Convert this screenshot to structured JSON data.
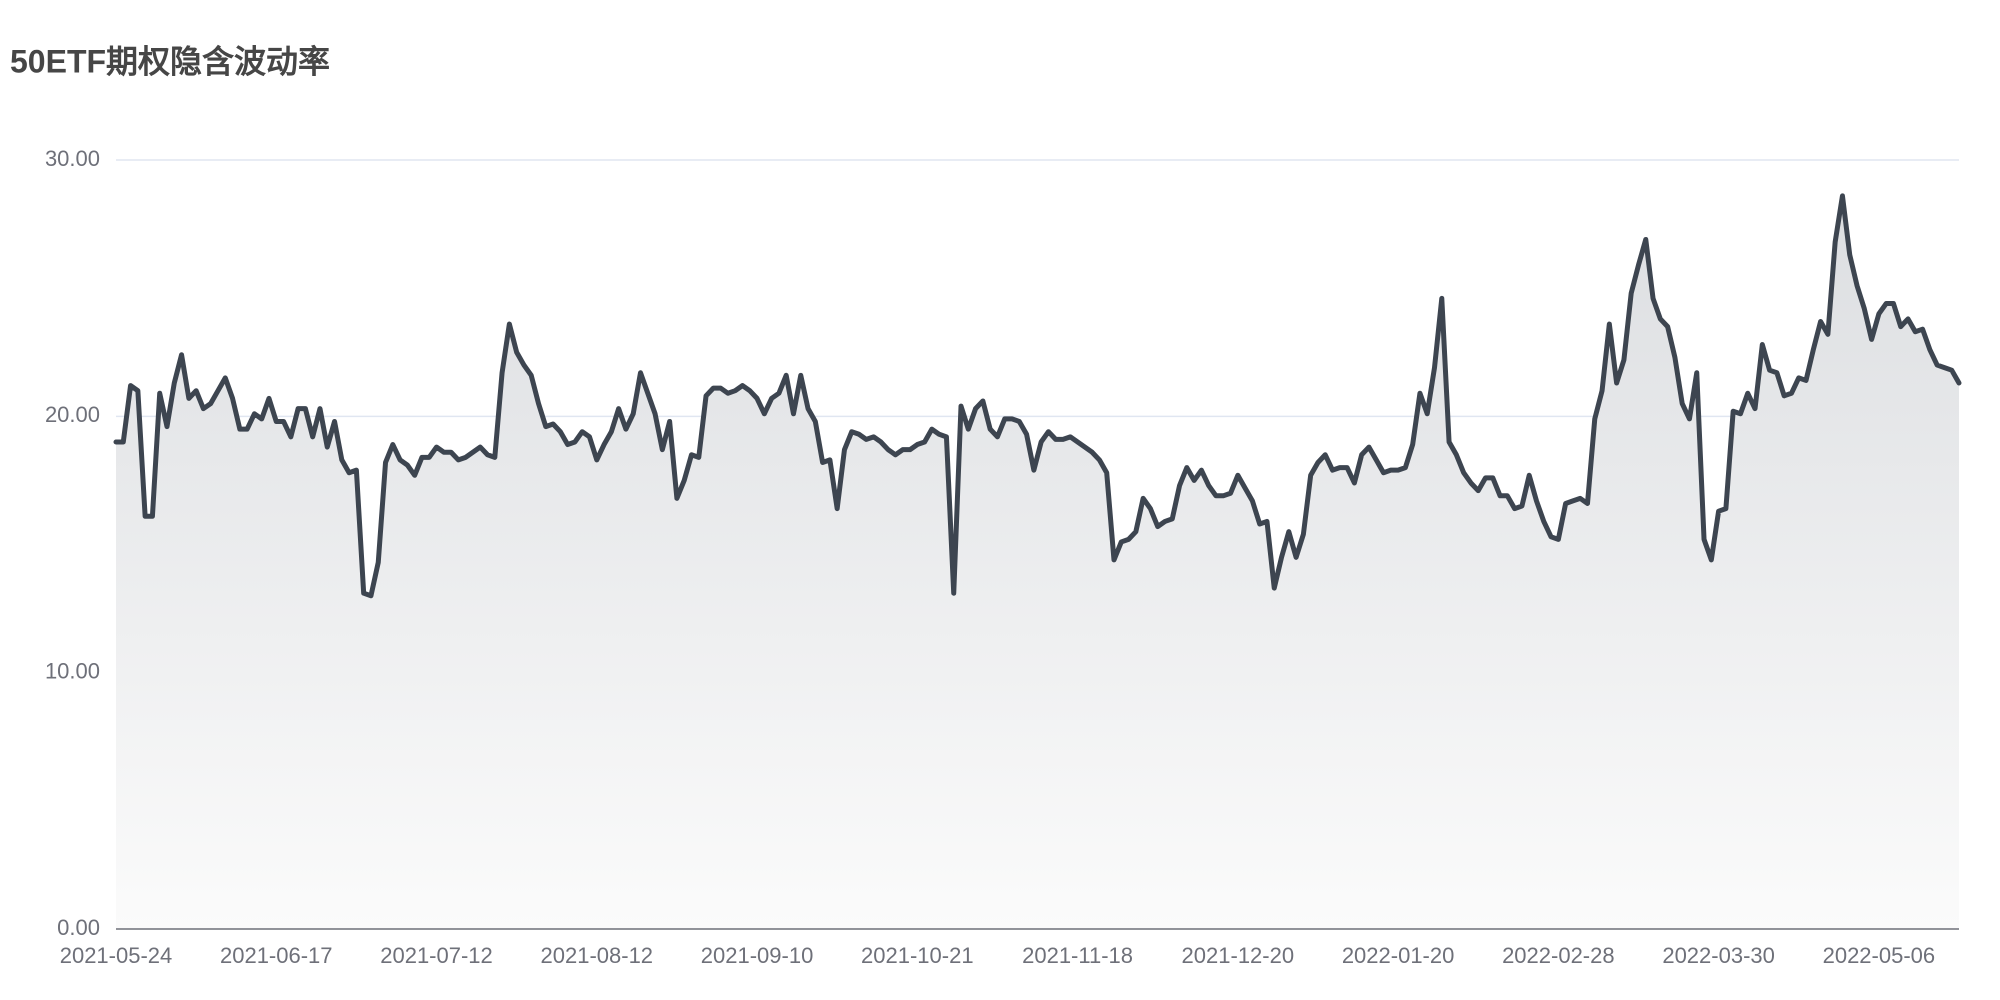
{
  "chart_data": {
    "type": "area-line",
    "title": "50ETF期权隐含波动率",
    "color": "#3d4550",
    "ylim": [
      0,
      30
    ],
    "yticks": [
      {
        "value": 0,
        "label": "0.00"
      },
      {
        "value": 10,
        "label": "10.00"
      },
      {
        "value": 20,
        "label": "20.00"
      },
      {
        "value": 30,
        "label": "30.00"
      }
    ],
    "grid": true,
    "categories": [
      "2021-05-24",
      null,
      null,
      null,
      null,
      null,
      null,
      null,
      null,
      null,
      null,
      null,
      null,
      null,
      null,
      null,
      null,
      null,
      null,
      null,
      null,
      null,
      "2021-06-17",
      null,
      null,
      null,
      null,
      null,
      null,
      null,
      null,
      null,
      null,
      null,
      null,
      null,
      null,
      null,
      null,
      null,
      null,
      null,
      null,
      null,
      "2021-07-12",
      null,
      null,
      null,
      null,
      null,
      null,
      null,
      null,
      null,
      null,
      null,
      null,
      null,
      null,
      null,
      null,
      null,
      null,
      null,
      null,
      null,
      "2021-08-12",
      null,
      null,
      null,
      null,
      null,
      null,
      null,
      null,
      null,
      null,
      null,
      null,
      null,
      null,
      null,
      null,
      null,
      null,
      null,
      null,
      null,
      "2021-09-10",
      null,
      null,
      null,
      null,
      null,
      null,
      null,
      null,
      null,
      null,
      null,
      null,
      null,
      null,
      null,
      null,
      null,
      null,
      null,
      null,
      null,
      "2021-10-21",
      null,
      null,
      null,
      null,
      null,
      null,
      null,
      null,
      null,
      null,
      null,
      null,
      null,
      null,
      null,
      null,
      null,
      null,
      null,
      null,
      null,
      "2021-11-18",
      null,
      null,
      null,
      null,
      null,
      null,
      null,
      null,
      null,
      null,
      null,
      null,
      null,
      null,
      null,
      null,
      null,
      null,
      null,
      null,
      null,
      "2021-12-20",
      null,
      null,
      null,
      null,
      null,
      null,
      null,
      null,
      null,
      null,
      null,
      null,
      null,
      null,
      null,
      null,
      null,
      null,
      null,
      null,
      null,
      "2022-01-20",
      null,
      null,
      null,
      null,
      null,
      null,
      null,
      null,
      null,
      null,
      null,
      null,
      null,
      null,
      null,
      null,
      null,
      null,
      null,
      null,
      null,
      "2022-02-28",
      null,
      null,
      null,
      null,
      null,
      null,
      null,
      null,
      null,
      null,
      null,
      null,
      null,
      null,
      null,
      null,
      null,
      null,
      null,
      null,
      null,
      "2022-03-30",
      null,
      null,
      null,
      null,
      null,
      null,
      null,
      null,
      null,
      null,
      null,
      null,
      null,
      null,
      null,
      null,
      null,
      null,
      null,
      null,
      null,
      "2022-05-06",
      null,
      null,
      null,
      null,
      null,
      null,
      null,
      null,
      null,
      null,
      null
    ],
    "values": [
      19.0,
      19.0,
      21.2,
      21.0,
      16.1,
      16.1,
      20.9,
      19.6,
      21.3,
      22.4,
      20.7,
      21.0,
      20.3,
      20.5,
      21.0,
      21.5,
      20.7,
      19.5,
      19.5,
      20.1,
      19.9,
      20.7,
      19.8,
      19.8,
      19.2,
      20.3,
      20.3,
      19.2,
      20.3,
      18.8,
      19.8,
      18.3,
      17.8,
      17.9,
      13.1,
      13.0,
      14.3,
      18.2,
      18.9,
      18.3,
      18.1,
      17.7,
      18.4,
      18.4,
      18.8,
      18.6,
      18.6,
      18.3,
      18.4,
      18.6,
      18.8,
      18.5,
      18.4,
      21.7,
      23.6,
      22.5,
      22.0,
      21.6,
      20.5,
      19.6,
      19.7,
      19.4,
      18.9,
      19.0,
      19.4,
      19.2,
      18.3,
      18.9,
      19.4,
      20.3,
      19.5,
      20.1,
      21.7,
      20.9,
      20.1,
      18.7,
      19.8,
      16.8,
      17.5,
      18.5,
      18.4,
      20.8,
      21.1,
      21.1,
      20.9,
      21.0,
      21.2,
      21.0,
      20.7,
      20.1,
      20.7,
      20.9,
      21.6,
      20.1,
      21.6,
      20.3,
      19.8,
      18.2,
      18.3,
      16.4,
      18.7,
      19.4,
      19.3,
      19.1,
      19.2,
      19.0,
      18.7,
      18.5,
      18.7,
      18.7,
      18.9,
      19.0,
      19.5,
      19.3,
      19.2,
      13.1,
      20.4,
      19.5,
      20.3,
      20.6,
      19.5,
      19.2,
      19.9,
      19.9,
      19.8,
      19.3,
      17.9,
      19.0,
      19.4,
      19.1,
      19.1,
      19.2,
      19.0,
      18.8,
      18.6,
      18.3,
      17.8,
      14.4,
      15.1,
      15.2,
      15.5,
      16.8,
      16.4,
      15.7,
      15.9,
      16.0,
      17.3,
      18.0,
      17.5,
      17.9,
      17.3,
      16.9,
      16.9,
      17.0,
      17.7,
      17.2,
      16.7,
      15.8,
      15.9,
      13.3,
      14.5,
      15.5,
      14.5,
      15.4,
      17.7,
      18.2,
      18.5,
      17.9,
      18.0,
      18.0,
      17.4,
      18.5,
      18.8,
      18.3,
      17.8,
      17.9,
      17.9,
      18.0,
      18.9,
      20.9,
      20.1,
      21.9,
      24.6,
      19.0,
      18.5,
      17.8,
      17.4,
      17.1,
      17.6,
      17.6,
      16.9,
      16.9,
      16.4,
      16.5,
      17.7,
      16.7,
      15.9,
      15.3,
      15.2,
      16.6,
      16.7,
      16.8,
      16.6,
      19.9,
      21.0,
      23.6,
      21.3,
      22.2,
      24.8,
      25.9,
      26.9,
      24.6,
      23.8,
      23.5,
      22.3,
      20.5,
      19.9,
      21.7,
      15.2,
      14.4,
      16.3,
      16.4,
      20.2,
      20.1,
      20.9,
      20.3,
      22.8,
      21.8,
      21.7,
      20.8,
      20.9,
      21.5,
      21.4,
      22.6,
      23.7,
      23.2,
      26.8,
      28.6,
      26.3,
      25.1,
      24.2,
      23.0,
      24.0,
      24.4,
      24.4,
      23.5,
      23.8,
      23.3,
      23.4,
      22.6,
      22.0,
      21.9,
      21.8,
      21.3
    ]
  }
}
